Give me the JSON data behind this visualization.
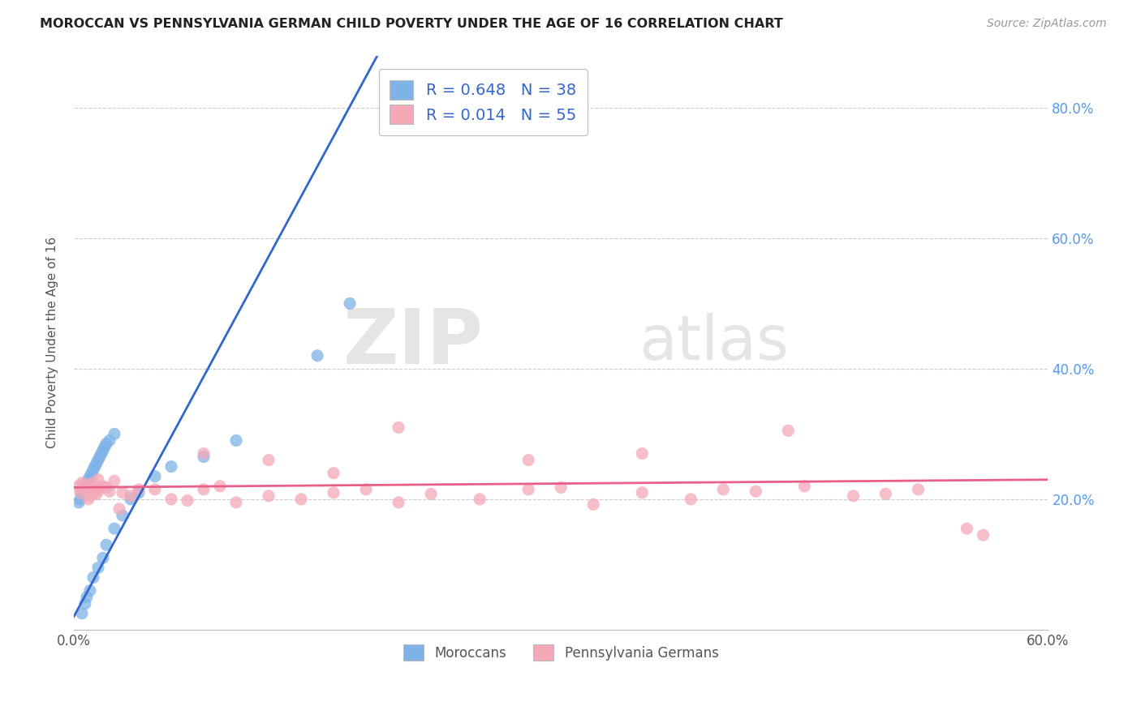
{
  "title": "MOROCCAN VS PENNSYLVANIA GERMAN CHILD POVERTY UNDER THE AGE OF 16 CORRELATION CHART",
  "source": "Source: ZipAtlas.com",
  "ylabel": "Child Poverty Under the Age of 16",
  "xlabel_moroccan": "Moroccans",
  "xlabel_pennger": "Pennsylvania Germans",
  "xlim": [
    0.0,
    0.6
  ],
  "ylim": [
    0.0,
    0.88
  ],
  "moroccan_R": "0.648",
  "moroccan_N": "38",
  "pennger_R": "0.014",
  "pennger_N": "55",
  "moroccan_color": "#7EB3E8",
  "pennger_color": "#F4A8B8",
  "line_moroccan_color": "#3366CC",
  "line_pennger_color": "#E8608A",
  "watermark_zip": "ZIP",
  "watermark_atlas": "atlas",
  "moroccan_x": [
    0.003,
    0.004,
    0.005,
    0.006,
    0.007,
    0.008,
    0.009,
    0.01,
    0.011,
    0.012,
    0.013,
    0.014,
    0.015,
    0.016,
    0.017,
    0.018,
    0.019,
    0.02,
    0.022,
    0.025,
    0.005,
    0.007,
    0.008,
    0.01,
    0.012,
    0.015,
    0.018,
    0.02,
    0.025,
    0.03,
    0.035,
    0.04,
    0.05,
    0.06,
    0.08,
    0.1,
    0.15,
    0.17
  ],
  "moroccan_y": [
    0.195,
    0.2,
    0.21,
    0.215,
    0.22,
    0.225,
    0.23,
    0.235,
    0.24,
    0.245,
    0.25,
    0.255,
    0.26,
    0.265,
    0.27,
    0.275,
    0.28,
    0.285,
    0.29,
    0.3,
    0.025,
    0.04,
    0.05,
    0.06,
    0.08,
    0.095,
    0.11,
    0.13,
    0.155,
    0.175,
    0.2,
    0.21,
    0.235,
    0.25,
    0.265,
    0.29,
    0.42,
    0.5
  ],
  "pennger_x": [
    0.003,
    0.004,
    0.005,
    0.006,
    0.007,
    0.008,
    0.009,
    0.01,
    0.011,
    0.012,
    0.013,
    0.014,
    0.015,
    0.016,
    0.018,
    0.02,
    0.022,
    0.025,
    0.028,
    0.03,
    0.035,
    0.04,
    0.05,
    0.06,
    0.07,
    0.08,
    0.09,
    0.1,
    0.12,
    0.14,
    0.16,
    0.18,
    0.2,
    0.22,
    0.25,
    0.28,
    0.3,
    0.32,
    0.35,
    0.38,
    0.4,
    0.42,
    0.45,
    0.48,
    0.5,
    0.52,
    0.55,
    0.08,
    0.12,
    0.16,
    0.2,
    0.28,
    0.35,
    0.44,
    0.56
  ],
  "pennger_y": [
    0.22,
    0.21,
    0.225,
    0.215,
    0.218,
    0.222,
    0.2,
    0.205,
    0.215,
    0.225,
    0.21,
    0.208,
    0.23,
    0.215,
    0.22,
    0.218,
    0.212,
    0.228,
    0.185,
    0.21,
    0.205,
    0.215,
    0.215,
    0.2,
    0.198,
    0.215,
    0.22,
    0.195,
    0.205,
    0.2,
    0.21,
    0.215,
    0.195,
    0.208,
    0.2,
    0.215,
    0.218,
    0.192,
    0.21,
    0.2,
    0.215,
    0.212,
    0.22,
    0.205,
    0.208,
    0.215,
    0.155,
    0.27,
    0.26,
    0.24,
    0.31,
    0.26,
    0.27,
    0.305,
    0.145
  ]
}
